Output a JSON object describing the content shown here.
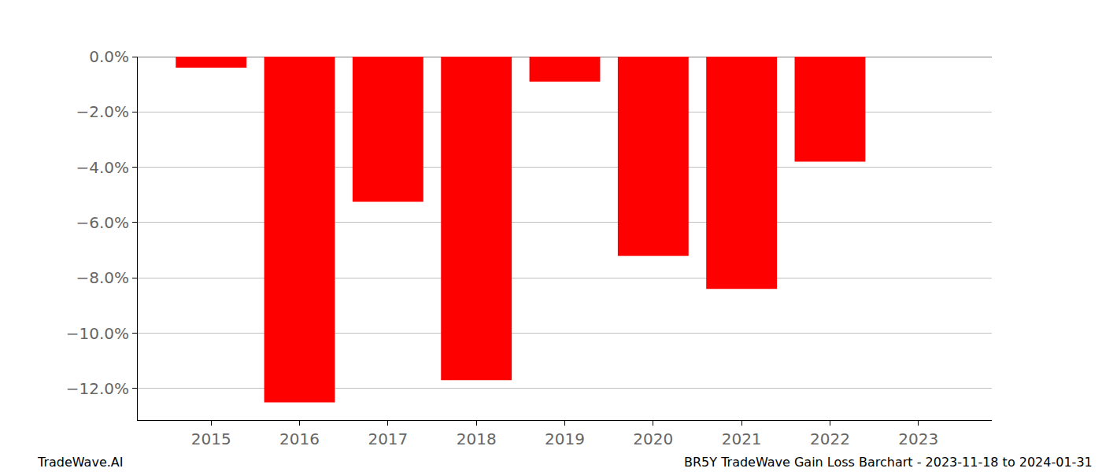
{
  "chart_data": {
    "type": "bar",
    "categories": [
      "2015",
      "2016",
      "2017",
      "2018",
      "2019",
      "2020",
      "2021",
      "2022",
      "2023"
    ],
    "values": [
      -0.4,
      -12.5,
      -5.25,
      -11.7,
      -0.9,
      -7.2,
      -8.4,
      -3.8,
      0
    ],
    "color": "#ff0000",
    "ylim": [
      -13.14,
      0
    ],
    "yticks": [
      {
        "value": 0,
        "label": "0.0%"
      },
      {
        "value": -2,
        "label": "−2.0%"
      },
      {
        "value": -4,
        "label": "−4.0%"
      },
      {
        "value": -6,
        "label": "−6.0%"
      },
      {
        "value": -8,
        "label": "−8.0%"
      },
      {
        "value": -10,
        "label": "−10.0%"
      },
      {
        "value": -12,
        "label": "−12.0%"
      }
    ],
    "grid": true,
    "annotations": [
      "TradeWave.AI",
      "BR5Y TradeWave Gain Loss Barchart - 2023-11-18 to 2024-01-31"
    ]
  }
}
